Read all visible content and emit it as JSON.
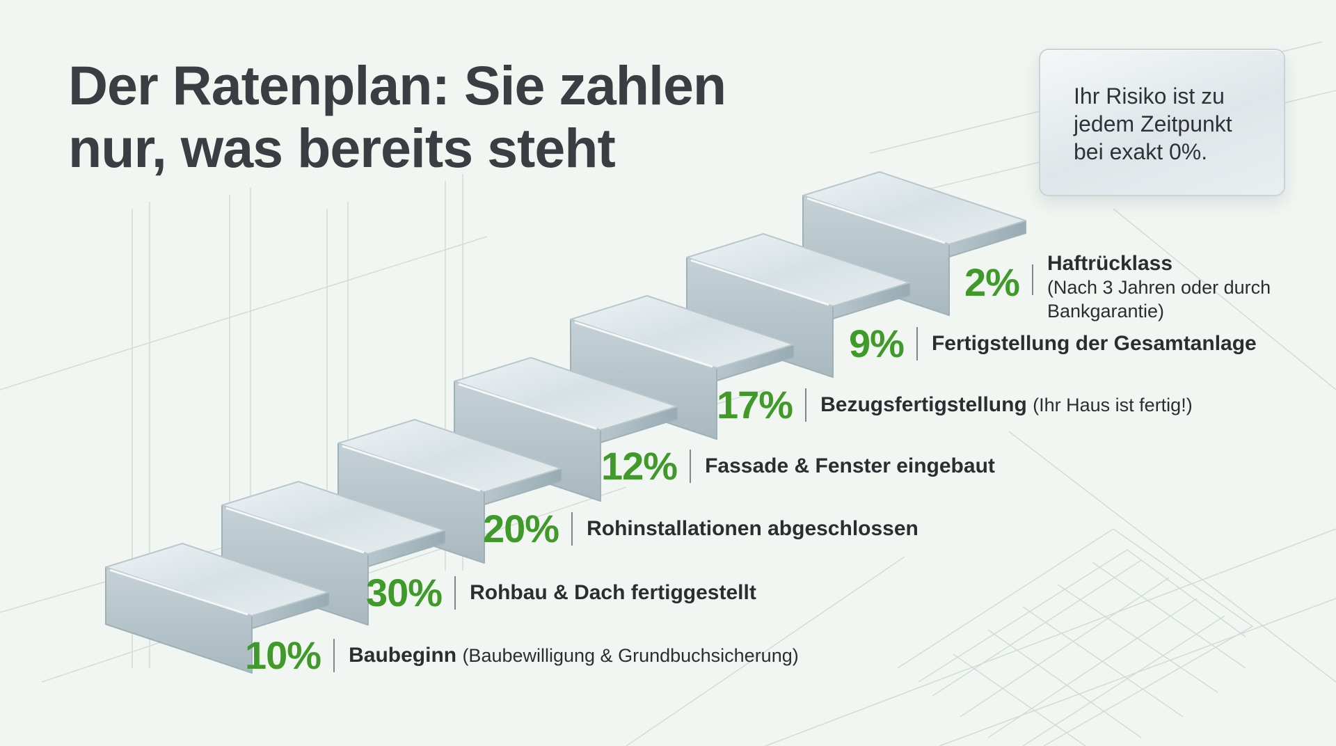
{
  "title": {
    "line1": "Der Ratenplan: Sie zahlen",
    "line2": "nur, was bereits steht"
  },
  "note": {
    "text": "Ihr Risiko ist zu jedem Zeitpunkt bei exakt 0%."
  },
  "steps": [
    {
      "percent": "10%",
      "label": "Baubeginn",
      "detail": "(Baubewilligung & Grundbuchsicherung)"
    },
    {
      "percent": "30%",
      "label": "Rohbau & Dach fertiggestellt",
      "detail": ""
    },
    {
      "percent": "20%",
      "label": "Rohinstallationen abgeschlossen",
      "detail": ""
    },
    {
      "percent": "12%",
      "label": "Fassade & Fenster eingebaut",
      "detail": ""
    },
    {
      "percent": "17%",
      "label": "Bezugsfertigstellung",
      "detail": "(Ihr Haus ist fertig!)"
    },
    {
      "percent": "9%",
      "label": "Fertigstellung der Gesamtanlage",
      "detail": ""
    },
    {
      "percent": "2%",
      "label": "Haftrücklass",
      "detail": "(Nach 3 Jahren oder durch Bankgarantie)"
    }
  ],
  "colors": {
    "accent": "#3f9a2a",
    "text": "#2f3236",
    "background": "#f2f6f2",
    "glass": "#dbe5e8"
  }
}
